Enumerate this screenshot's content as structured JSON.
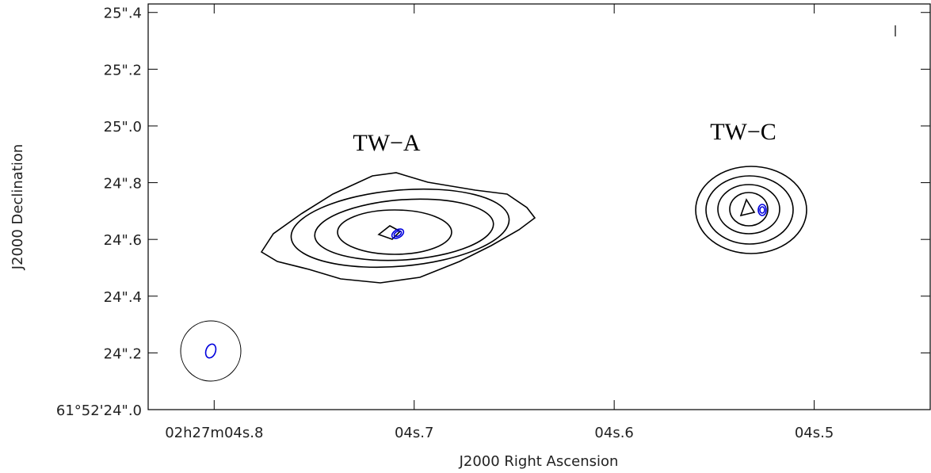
{
  "chart_data": {
    "type": "contour",
    "x_label": "J2000 Right Ascension",
    "y_label": "J2000 Declination",
    "annotations": [
      "TW−A",
      "TW−C"
    ],
    "xlim": [
      4.833,
      4.442
    ],
    "ylim": [
      24.0,
      25.43
    ],
    "xticks": [
      {
        "value": 4.8,
        "label": "02h27m04s.8"
      },
      {
        "value": 4.7,
        "label": "04s.7"
      },
      {
        "value": 4.6,
        "label": "04s.6"
      },
      {
        "value": 4.5,
        "label": "04s.5"
      }
    ],
    "yticks": [
      {
        "value": 24.0,
        "label": "61°52'24\".0"
      },
      {
        "value": 24.2,
        "label": "24\".2"
      },
      {
        "value": 24.4,
        "label": "24\".4"
      },
      {
        "value": 24.6,
        "label": "24\".6"
      },
      {
        "value": 24.8,
        "label": "24\".8"
      },
      {
        "value": 25.0,
        "label": "25\".0"
      },
      {
        "value": 25.2,
        "label": "25\".2"
      },
      {
        "value": 25.4,
        "label": "25\".4"
      }
    ]
  }
}
